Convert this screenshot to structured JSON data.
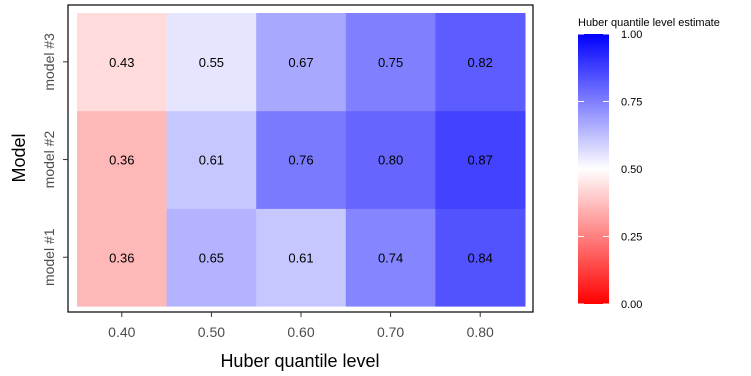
{
  "chart_data": {
    "type": "heatmap",
    "xlabel": "Huber quantile level",
    "ylabel": "Model",
    "x_categories": [
      "0.40",
      "0.50",
      "0.60",
      "0.70",
      "0.80"
    ],
    "y_categories": [
      "model #1",
      "model #2",
      "model #3"
    ],
    "values": [
      [
        0.36,
        0.65,
        0.61,
        0.74,
        0.84
      ],
      [
        0.36,
        0.61,
        0.76,
        0.8,
        0.87
      ],
      [
        0.43,
        0.55,
        0.67,
        0.75,
        0.82
      ]
    ],
    "value_labels": [
      [
        "0.36",
        "0.65",
        "0.61",
        "0.74",
        "0.84"
      ],
      [
        "0.36",
        "0.61",
        "0.76",
        "0.80",
        "0.87"
      ],
      [
        "0.43",
        "0.55",
        "0.67",
        "0.75",
        "0.82"
      ]
    ],
    "color_scale": {
      "title": "Huber quantile level estimate",
      "low_color": "#ff0000",
      "mid_color": "#ffffff",
      "high_color": "#0000ff",
      "low": 0.0,
      "mid": 0.5,
      "high": 1.0,
      "ticks": [
        "0.00",
        "0.25",
        "0.50",
        "0.75",
        "1.00"
      ]
    },
    "grid": false,
    "legend_position": "right"
  }
}
